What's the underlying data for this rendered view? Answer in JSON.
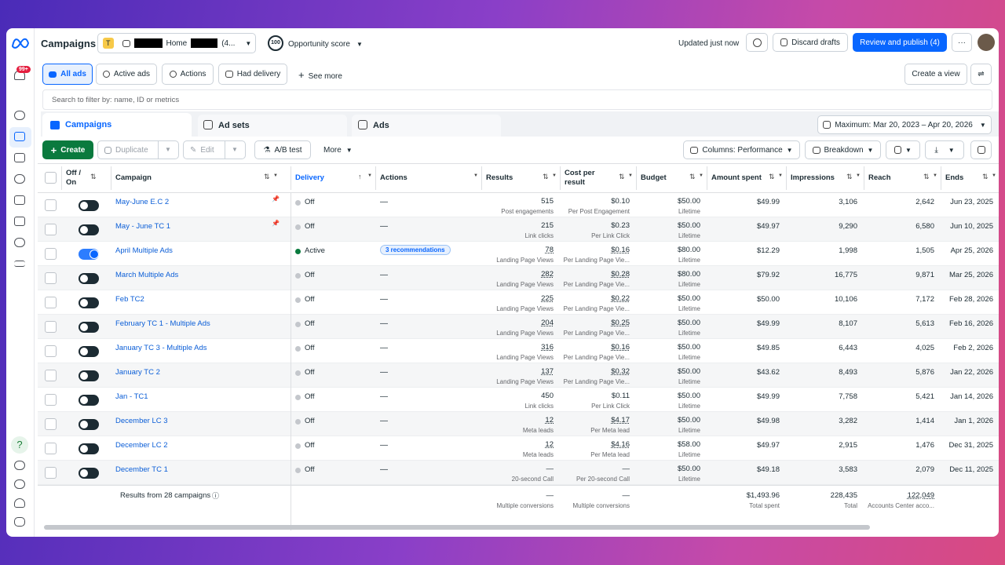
{
  "header": {
    "app_title": "Campaigns",
    "account_badge": "T",
    "account_name": "Home",
    "account_suffix": "(4...",
    "score_badge": "100",
    "score_label": "Opportunity score",
    "updated": "Updated just now",
    "discard": "Discard drafts",
    "publish": "Review and publish (4)"
  },
  "sidebar": {
    "notifications": "99+"
  },
  "filters": {
    "buttons": [
      "All ads",
      "Active ads",
      "Actions",
      "Had delivery"
    ],
    "see_more": "See more",
    "create_view": "Create a view",
    "search_placeholder": "Search to filter by: name, ID or metrics"
  },
  "tabs": {
    "items": [
      "Campaigns",
      "Ad sets",
      "Ads"
    ],
    "date_range": "Maximum: Mar 20, 2023 – Apr 20, 2026"
  },
  "toolbar": {
    "create": "Create",
    "duplicate": "Duplicate",
    "edit": "Edit",
    "ab_test": "A/B test",
    "more": "More",
    "columns": "Columns: Performance",
    "breakdown": "Breakdown"
  },
  "table": {
    "columns": {
      "onoff": "Off / On",
      "campaign": "Campaign",
      "delivery": "Delivery",
      "actions": "Actions",
      "results": "Results",
      "cost": "Cost per result",
      "budget": "Budget",
      "spent": "Amount spent",
      "impressions": "Impressions",
      "reach": "Reach",
      "ends": "Ends"
    },
    "rows": [
      {
        "on": false,
        "pinned": true,
        "campaign": "May-June E.C 2",
        "delivery": "Off",
        "actions": "—",
        "results": "515",
        "results_sub": "Post engagements",
        "cost": "$0.10",
        "cost_sub": "Per Post Engagement",
        "budget": "$50.00",
        "budget_sub": "Lifetime",
        "spent": "$49.99",
        "impressions": "3,106",
        "reach": "2,642",
        "ends": "Jun 23, 2025"
      },
      {
        "on": false,
        "pinned": true,
        "campaign": "May - June TC 1",
        "delivery": "Off",
        "actions": "—",
        "results": "215",
        "results_sub": "Link clicks",
        "cost": "$0.23",
        "cost_sub": "Per Link Click",
        "budget": "$50.00",
        "budget_sub": "Lifetime",
        "spent": "$49.97",
        "impressions": "9,290",
        "reach": "6,580",
        "ends": "Jun 10, 2025"
      },
      {
        "on": true,
        "pinned": false,
        "campaign": "April Multiple Ads",
        "delivery": "Active",
        "actions": "3 recommendations",
        "results": "78",
        "results_sub": "Landing Page Views",
        "cost": "$0.16",
        "cost_sub": "Per Landing Page Vie...",
        "budget": "$80.00",
        "budget_sub": "Lifetime",
        "spent": "$12.29",
        "impressions": "1,998",
        "reach": "1,505",
        "ends": "Apr 25, 2026"
      },
      {
        "on": false,
        "pinned": false,
        "campaign": "March Multiple Ads",
        "delivery": "Off",
        "actions": "—",
        "results": "282",
        "results_sub": "Landing Page Views",
        "cost": "$0.28",
        "cost_sub": "Per Landing Page Vie...",
        "budget": "$80.00",
        "budget_sub": "Lifetime",
        "spent": "$79.92",
        "impressions": "16,775",
        "reach": "9,871",
        "ends": "Mar 25, 2026"
      },
      {
        "on": false,
        "pinned": false,
        "campaign": "Feb TC2",
        "delivery": "Off",
        "actions": "—",
        "results": "225",
        "results_sub": "Landing Page Views",
        "cost": "$0.22",
        "cost_sub": "Per Landing Page Vie...",
        "budget": "$50.00",
        "budget_sub": "Lifetime",
        "spent": "$50.00",
        "impressions": "10,106",
        "reach": "7,172",
        "ends": "Feb 28, 2026"
      },
      {
        "on": false,
        "pinned": false,
        "campaign": "February TC 1 - Multiple Ads",
        "delivery": "Off",
        "actions": "—",
        "results": "204",
        "results_sub": "Landing Page Views",
        "cost": "$0.25",
        "cost_sub": "Per Landing Page Vie...",
        "budget": "$50.00",
        "budget_sub": "Lifetime",
        "spent": "$49.99",
        "impressions": "8,107",
        "reach": "5,613",
        "ends": "Feb 16, 2026"
      },
      {
        "on": false,
        "pinned": false,
        "campaign": "January TC 3 - Multiple Ads",
        "delivery": "Off",
        "actions": "—",
        "results": "316",
        "results_sub": "Landing Page Views",
        "cost": "$0.16",
        "cost_sub": "Per Landing Page Vie...",
        "budget": "$50.00",
        "budget_sub": "Lifetime",
        "spent": "$49.85",
        "impressions": "6,443",
        "reach": "4,025",
        "ends": "Feb 2, 2026"
      },
      {
        "on": false,
        "pinned": false,
        "campaign": "January TC 2",
        "delivery": "Off",
        "actions": "—",
        "results": "137",
        "results_sub": "Landing Page Views",
        "cost": "$0.32",
        "cost_sub": "Per Landing Page Vie...",
        "budget": "$50.00",
        "budget_sub": "Lifetime",
        "spent": "$43.62",
        "impressions": "8,493",
        "reach": "5,876",
        "ends": "Jan 22, 2026"
      },
      {
        "on": false,
        "pinned": false,
        "campaign": "Jan - TC1",
        "delivery": "Off",
        "actions": "—",
        "results": "450",
        "results_sub": "Link clicks",
        "cost": "$0.11",
        "cost_sub": "Per Link Click",
        "budget": "$50.00",
        "budget_sub": "Lifetime",
        "spent": "$49.99",
        "impressions": "7,758",
        "reach": "5,421",
        "ends": "Jan 14, 2026"
      },
      {
        "on": false,
        "pinned": false,
        "campaign": "December LC 3",
        "delivery": "Off",
        "actions": "—",
        "results": "12",
        "results_sub": "Meta leads",
        "cost": "$4.17",
        "cost_sub": "Per Meta lead",
        "budget": "$50.00",
        "budget_sub": "Lifetime",
        "spent": "$49.98",
        "impressions": "3,282",
        "reach": "1,414",
        "ends": "Jan 1, 2026"
      },
      {
        "on": false,
        "pinned": false,
        "campaign": "December LC 2",
        "delivery": "Off",
        "actions": "—",
        "results": "12",
        "results_sub": "Meta leads",
        "cost": "$4.16",
        "cost_sub": "Per Meta lead",
        "budget": "$58.00",
        "budget_sub": "Lifetime",
        "spent": "$49.97",
        "impressions": "2,915",
        "reach": "1,476",
        "ends": "Dec 31, 2025"
      },
      {
        "on": false,
        "pinned": false,
        "campaign": "December TC 1",
        "delivery": "Off",
        "actions": "—",
        "results": "—",
        "results_sub": "20-second Call",
        "cost": "—",
        "cost_sub": "Per 20-second Call",
        "budget": "$50.00",
        "budget_sub": "Lifetime",
        "spent": "$49.18",
        "impressions": "3,583",
        "reach": "2,079",
        "ends": "Dec 11, 2025"
      }
    ],
    "footer": {
      "label": "Results from 28 campaigns",
      "results": "—",
      "results_sub": "Multiple conversions",
      "cost": "—",
      "cost_sub": "Multiple conversions",
      "spent": "$1,493.96",
      "spent_sub": "Total spent",
      "impressions": "228,435",
      "impressions_sub": "Total",
      "reach": "122,049",
      "reach_sub": "Accounts Center acco..."
    }
  }
}
